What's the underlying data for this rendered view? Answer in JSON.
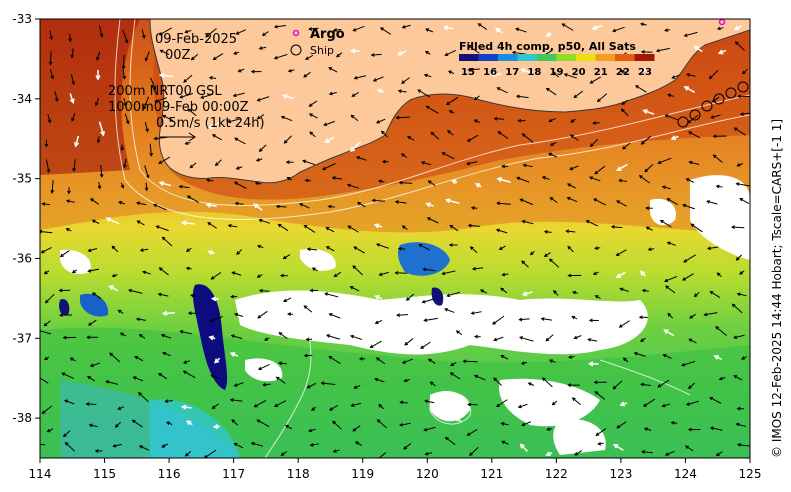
{
  "map": {
    "lon_ticks": [
      "114",
      "115",
      "116",
      "117",
      "118",
      "119",
      "120",
      "121",
      "122",
      "123",
      "124",
      "125"
    ],
    "lat_ticks": [
      "-33",
      "-34",
      "-35",
      "-36",
      "-37",
      "-38"
    ],
    "lon_range": [
      114,
      125
    ],
    "lat_range": [
      -38.5,
      -33
    ]
  },
  "annotations": {
    "date": "09-Feb-2025",
    "time": "00Z",
    "contour_line1": "200m  NRT00 GSL",
    "contour_line2": "1000m09-Feb 00:00Z",
    "scale_label": "0.5m/s (1kt 24h)"
  },
  "symbol_legend": {
    "argo_label": "Argo",
    "ship_label": "Ship",
    "argo_color": "#e000e0"
  },
  "colorbar": {
    "title": "Filled 4h comp, p50, All Sats",
    "ticks": [
      "15",
      "16",
      "17",
      "18",
      "19",
      "20",
      "21",
      "22",
      "23"
    ],
    "colors": [
      "#10107a",
      "#1040c8",
      "#1a8fe0",
      "#30c8d0",
      "#40c860",
      "#90dc20",
      "#e8e010",
      "#f0a020",
      "#e06010",
      "#a01808"
    ]
  },
  "credit": "© IMOS 12-Feb-2025 14:44 Hobart; Tscale=CARS+[-1 1]",
  "colors": {
    "land": "#fdc99a",
    "coast": "#3a3a3a",
    "frame": "#000000"
  }
}
